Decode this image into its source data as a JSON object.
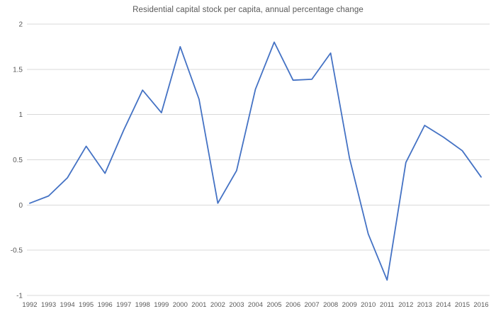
{
  "chart_data": {
    "type": "line",
    "title": "Residential capital stock per capita,  annual percentage change",
    "x": [
      1992,
      1993,
      1994,
      1995,
      1996,
      1997,
      1998,
      1999,
      2000,
      2001,
      2002,
      2003,
      2004,
      2005,
      2006,
      2007,
      2008,
      2009,
      2010,
      2011,
      2012,
      2013,
      2014,
      2015,
      2016
    ],
    "series": [
      {
        "name": "Residential capital stock per capita, annual percentage change",
        "values": [
          0.02,
          0.1,
          0.3,
          0.65,
          0.35,
          0.83,
          1.27,
          1.02,
          1.75,
          1.17,
          0.02,
          0.38,
          1.28,
          1.8,
          1.38,
          1.39,
          1.68,
          0.52,
          -0.32,
          -0.83,
          0.47,
          0.88,
          0.75,
          0.6,
          0.31
        ]
      }
    ],
    "xlabel": "",
    "ylabel": "",
    "ylim": [
      -1,
      2
    ],
    "yticks": [
      2,
      1.5,
      1,
      0.5,
      0,
      -0.5,
      -1
    ],
    "ytick_labels": [
      "2",
      "1.5",
      "1",
      "0.5",
      "0",
      "-0.5",
      "-1"
    ],
    "grid": "horizontal",
    "legend_position": "none",
    "colors": {
      "line": "#4472C4",
      "gridline": "#D9D9D9",
      "tick_text": "#595959",
      "title_text": "#595959",
      "background": "#FFFFFF"
    }
  }
}
